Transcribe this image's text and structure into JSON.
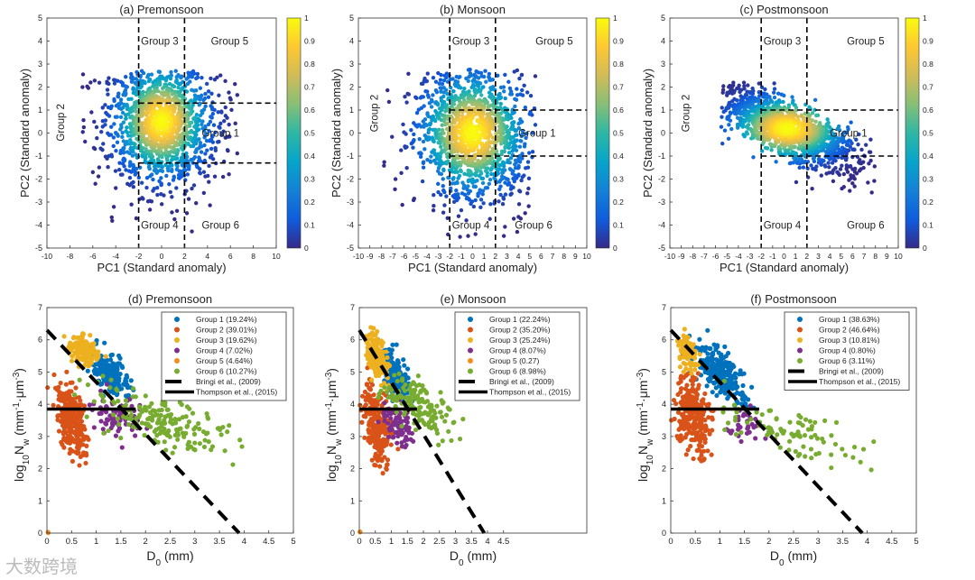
{
  "chart_data": [
    {
      "type": "scatter",
      "title": "(a) Premonsoon",
      "xlabel": "PC1 (Standard anomaly)",
      "ylabel": "PC2 (Standard anomaly)",
      "xlim": [
        -10,
        10
      ],
      "ylim": [
        -5,
        5
      ],
      "xticks": [
        -10,
        -8,
        -6,
        -4,
        -2,
        0,
        2,
        4,
        6,
        8,
        10
      ],
      "yticks": [
        -5,
        -4,
        -3,
        -2,
        -1,
        0,
        1,
        2,
        3,
        4,
        5
      ],
      "colorbar": {
        "range": [
          0,
          1
        ],
        "ticks": [
          "0",
          "0.1",
          "0.2",
          "0.3",
          "0.4",
          "0.5",
          "0.6",
          "0.7",
          "0.8",
          "0.9",
          "1"
        ]
      },
      "cloud": {
        "center": [
          0,
          0.5
        ],
        "sd": [
          2.2,
          1.3
        ],
        "rho": 0.0,
        "count": 1500,
        "xrange": [
          -7,
          7
        ],
        "yrange": [
          -4.8,
          2.7
        ]
      },
      "thresholds": {
        "x": [
          -2,
          2
        ],
        "y": [
          -1.3,
          1.3
        ]
      },
      "groups": [
        {
          "label": "Group 3",
          "x": -1.8,
          "y": 4
        },
        {
          "label": "Group 5",
          "x": 4.3,
          "y": 4
        },
        {
          "label": "Group 2",
          "x": -8.5,
          "y": -0.2,
          "rot": true
        },
        {
          "label": "Group 1",
          "x": 3.5,
          "y": 0
        },
        {
          "label": "Group 4",
          "x": -1.8,
          "y": -4
        },
        {
          "label": "Group 6",
          "x": 3.5,
          "y": -4
        }
      ]
    },
    {
      "type": "scatter",
      "title": "(b) Monsoon",
      "xlabel": "PC1 (Standard anomaly)",
      "ylabel": "PC2 (Standard anomaly)",
      "xlim": [
        -10,
        10
      ],
      "ylim": [
        -5,
        5
      ],
      "xticks": [
        -10,
        -9,
        -8,
        -7,
        -6,
        -5,
        -4,
        -3,
        -2,
        -1,
        0,
        1,
        2,
        3,
        4,
        5,
        6,
        7,
        8,
        9,
        10
      ],
      "yticks": [
        -5,
        -4,
        -3,
        -2,
        -1,
        0,
        1,
        2,
        3,
        4,
        5
      ],
      "colorbar": {
        "range": [
          0,
          1
        ],
        "ticks": [
          "0",
          "0.1",
          "0.2",
          "0.3",
          "0.4",
          "0.5",
          "0.6",
          "0.7",
          "0.8",
          "0.9",
          "1"
        ]
      },
      "cloud": {
        "center": [
          0,
          0
        ],
        "sd": [
          2.5,
          1.4
        ],
        "rho": -0.15,
        "count": 1500,
        "xrange": [
          -8,
          5.5
        ],
        "yrange": [
          -4.8,
          2.8
        ]
      },
      "thresholds": {
        "x": [
          -2,
          2
        ],
        "y": [
          -1,
          1
        ]
      },
      "groups": [
        {
          "label": "Group 3",
          "x": -1.8,
          "y": 4
        },
        {
          "label": "Group 5",
          "x": 5.5,
          "y": 4
        },
        {
          "label": "Group 2",
          "x": -8.3,
          "y": 0.2,
          "rot": true
        },
        {
          "label": "Group 1",
          "x": 4,
          "y": 0
        },
        {
          "label": "Group 4",
          "x": -1.8,
          "y": -4
        },
        {
          "label": "Group 6",
          "x": 3.7,
          "y": -4
        }
      ]
    },
    {
      "type": "scatter",
      "title": "(c) Postmonsoon",
      "xlabel": "PC1 (Standard anomaly)",
      "ylabel": "PC2 (Standard anomaly)",
      "xlim": [
        -10,
        10
      ],
      "ylim": [
        -5,
        5
      ],
      "xticks": [
        -10,
        -9,
        -8,
        -7,
        -6,
        -5,
        -4,
        -3,
        -2,
        -1,
        0,
        1,
        2,
        3,
        4,
        5,
        6,
        7,
        8,
        9,
        10
      ],
      "yticks": [
        -5,
        -4,
        -3,
        -2,
        -1,
        0,
        1,
        2,
        3,
        4,
        5
      ],
      "colorbar": {
        "range": [
          0,
          1
        ],
        "ticks": [
          "0",
          "0.1",
          "0.2",
          "0.3",
          "0.4",
          "0.5",
          "0.6",
          "0.7",
          "0.8",
          "0.9",
          "1"
        ]
      },
      "cloud": {
        "center": [
          0.3,
          0.2
        ],
        "sd": [
          2.8,
          0.8
        ],
        "rho": -0.75,
        "count": 1500,
        "xrange": [
          -5.5,
          8
        ],
        "yrange": [
          -4.2,
          2.2
        ]
      },
      "thresholds": {
        "x": [
          -2,
          2
        ],
        "y": [
          -1,
          1
        ]
      },
      "groups": [
        {
          "label": "Group 3",
          "x": -1.8,
          "y": 4
        },
        {
          "label": "Group 5",
          "x": 5.5,
          "y": 4
        },
        {
          "label": "Group 2",
          "x": -8.3,
          "y": 0.2,
          "rot": true
        },
        {
          "label": "Group 1",
          "x": 4,
          "y": 0
        },
        {
          "label": "Group 4",
          "x": -1.8,
          "y": -4
        },
        {
          "label": "Group 6",
          "x": 5.5,
          "y": -4
        }
      ]
    },
    {
      "type": "scatter",
      "title": "(d) Premonsoon",
      "xlabel": [
        "D",
        "0",
        " (mm)"
      ],
      "ylabel": [
        "log",
        "10",
        "N",
        "w",
        " (mm",
        "-1",
        "·μ",
        "m",
        "-3",
        ")"
      ],
      "xlim": [
        0,
        5
      ],
      "ylim": [
        0,
        7
      ],
      "xticks": [
        "0",
        "0.5",
        "1",
        "1.5",
        "2",
        "2.5",
        "3",
        "3.5",
        "4",
        "4.5",
        "5"
      ],
      "yticks": [
        "0",
        "1",
        "2",
        "3",
        "4",
        "5",
        "6",
        "7"
      ],
      "series": [
        {
          "name": "Group 1 (19.24%)",
          "color": "#0072BD",
          "center": [
            1.3,
            4.9
          ],
          "sd": [
            0.2,
            0.35
          ],
          "rho": -0.5,
          "count": 160
        },
        {
          "name": "Group 2 (39.01%)",
          "color": "#D95319",
          "center": [
            0.5,
            3.5
          ],
          "sd": [
            0.15,
            0.55
          ],
          "rho": -0.3,
          "count": 260
        },
        {
          "name": "Group 3 (19.62%)",
          "color": "#EDB120",
          "center": [
            0.75,
            5.7
          ],
          "sd": [
            0.15,
            0.25
          ],
          "rho": -0.4,
          "count": 140
        },
        {
          "name": "Group 4 (7.02%)",
          "color": "#7E2F8E",
          "center": [
            1.4,
            3.6
          ],
          "sd": [
            0.25,
            0.3
          ],
          "rho": -0.3,
          "count": 80
        },
        {
          "name": "Group 5 (4.64%)",
          "color": "#F28E1C",
          "center": [
            0.03,
            0.03
          ],
          "sd": [
            0.01,
            0.01
          ],
          "rho": 0,
          "count": 3
        },
        {
          "name": "Group 6 (10.27%)",
          "color": "#77AC30",
          "center": [
            2.3,
            3.5
          ],
          "sd": [
            0.7,
            0.5
          ],
          "rho": -0.7,
          "count": 180
        }
      ],
      "lines": [
        {
          "name": "Bringi et al., (2009)",
          "style": "dashed",
          "points": [
            [
              0,
              6.3
            ],
            [
              3.9,
              0
            ]
          ]
        },
        {
          "name": "Thompson et al., (2015)",
          "style": "solid",
          "points": [
            [
              0,
              3.85
            ],
            [
              1.8,
              3.85
            ]
          ]
        }
      ]
    },
    {
      "type": "scatter",
      "title": "(e) Monsoon",
      "xlabel": [
        "D",
        "0",
        " (mm)"
      ],
      "ylabel": [
        "log",
        "10",
        "N",
        "w",
        " (mm",
        "-1",
        "·μ",
        "m",
        "-3",
        ")"
      ],
      "xlim": [
        0,
        7.1
      ],
      "ylim": [
        0,
        7
      ],
      "xticks": [
        "0",
        "0.5",
        "1",
        "1.5",
        "2",
        "2.5",
        "3",
        "3.5",
        "4",
        "4.5"
      ],
      "yticks": [
        "0",
        "1",
        "2",
        "3",
        "4",
        "5",
        "6",
        "7"
      ],
      "series": [
        {
          "name": "Group 1 (22.24%)",
          "color": "#0072BD",
          "center": [
            1.1,
            4.9
          ],
          "sd": [
            0.2,
            0.4
          ],
          "rho": -0.5,
          "count": 180
        },
        {
          "name": "Group 2 (35.20%)",
          "color": "#D95319",
          "center": [
            0.55,
            3.4
          ],
          "sd": [
            0.2,
            0.6
          ],
          "rho": -0.3,
          "count": 250
        },
        {
          "name": "Group 3 (25.24%)",
          "color": "#EDB120",
          "center": [
            0.55,
            5.5
          ],
          "sd": [
            0.15,
            0.35
          ],
          "rho": -0.4,
          "count": 170
        },
        {
          "name": "Group 4 (8.07%)",
          "color": "#7E2F8E",
          "center": [
            1.2,
            3.4
          ],
          "sd": [
            0.25,
            0.35
          ],
          "rho": -0.3,
          "count": 90
        },
        {
          "name": "Group 5 (0.27)",
          "color": "#F28E1C",
          "center": [
            0.03,
            0.03
          ],
          "sd": [
            0.01,
            0.01
          ],
          "rho": 0,
          "count": 3
        },
        {
          "name": "Group 6 (8.98%)",
          "color": "#77AC30",
          "center": [
            1.8,
            4.0
          ],
          "sd": [
            0.5,
            0.5
          ],
          "rho": -0.6,
          "count": 150
        }
      ],
      "lines": [
        {
          "name": "Bringi et al., (2009)",
          "style": "dashed",
          "points": [
            [
              0,
              6.3
            ],
            [
              3.9,
              0
            ]
          ]
        },
        {
          "name": "Thompson et al., (2015)",
          "style": "solid",
          "points": [
            [
              0,
              3.85
            ],
            [
              1.8,
              3.85
            ]
          ]
        }
      ]
    },
    {
      "type": "scatter",
      "title": "(f) Postmonsoon",
      "xlabel": [
        "D",
        "0",
        " (mm)"
      ],
      "ylabel": [
        "log",
        "10",
        "N",
        "w",
        " (mm",
        "-1",
        "·μ",
        "m",
        "-3",
        ")"
      ],
      "xlim": [
        0,
        5
      ],
      "ylim": [
        0,
        7
      ],
      "xticks": [
        "0",
        "0.5",
        "1",
        "1.5",
        "2",
        "2.5",
        "3",
        "3.5",
        "4",
        "4.5",
        "5"
      ],
      "yticks": [
        "0",
        "1",
        "2",
        "3",
        "4",
        "5",
        "6",
        "7"
      ],
      "series": [
        {
          "name": "Group 1 (38.63%)",
          "color": "#0072BD",
          "center": [
            1.0,
            5.0
          ],
          "sd": [
            0.25,
            0.45
          ],
          "rho": -0.6,
          "count": 230
        },
        {
          "name": "Group 2 (46.64%)",
          "color": "#D95319",
          "center": [
            0.45,
            3.6
          ],
          "sd": [
            0.18,
            0.6
          ],
          "rho": -0.3,
          "count": 260
        },
        {
          "name": "Group 3 (10.81%)",
          "color": "#EDB120",
          "center": [
            0.35,
            5.6
          ],
          "sd": [
            0.1,
            0.3
          ],
          "rho": -0.4,
          "count": 80
        },
        {
          "name": "Group 4 (0.80%)",
          "color": "#7E2F8E",
          "center": [
            1.5,
            3.4
          ],
          "sd": [
            0.15,
            0.3
          ],
          "rho": -0.3,
          "count": 30
        },
        {
          "name": "Group 6 (3.11%)",
          "color": "#77AC30",
          "center": [
            2.4,
            3.2
          ],
          "sd": [
            0.8,
            0.5
          ],
          "rho": -0.7,
          "count": 90
        }
      ],
      "lines": [
        {
          "name": "Bringi et al., (2009)",
          "style": "dashed",
          "points": [
            [
              0,
              6.3
            ],
            [
              3.9,
              0
            ]
          ]
        },
        {
          "name": "Thompson et al., (2015)",
          "style": "solid",
          "points": [
            [
              0,
              3.85
            ],
            [
              1.8,
              3.85
            ]
          ]
        }
      ]
    }
  ],
  "watermark": "大数跨境"
}
